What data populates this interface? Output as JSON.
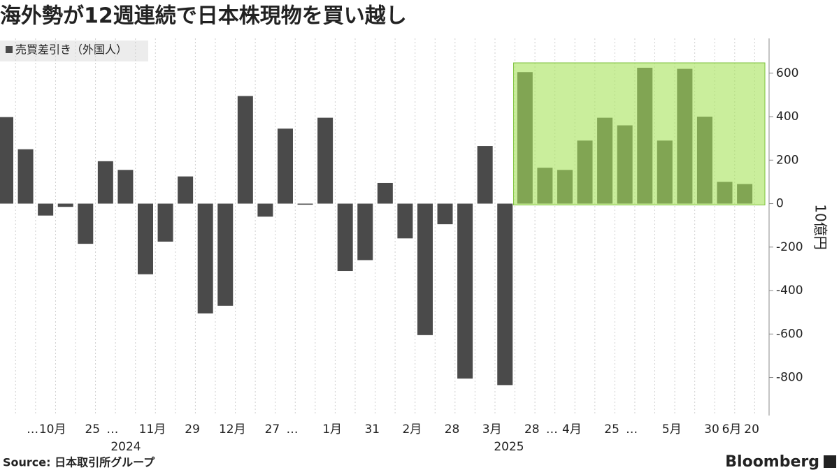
{
  "chart_data": {
    "type": "bar",
    "title": "海外勢が12週連続で日本株現物を買い越し",
    "legend": "売買差引き（外国人）",
    "y_axis_label": "10億円",
    "source": "Source: 日本取引所グループ",
    "brand": "Bloomberg",
    "year_labels": [
      "2024",
      "2025"
    ],
    "color": "#4a4a4a",
    "highlight_color": "#a6e25a",
    "categories": [
      null,
      "…",
      "10月",
      null,
      "25",
      "…",
      null,
      "11月",
      null,
      "29",
      null,
      "12月",
      null,
      "27",
      "…",
      null,
      "1月",
      null,
      "31",
      null,
      "2月",
      null,
      "28",
      null,
      "3月",
      null,
      "28",
      "…",
      "4月",
      null,
      "25",
      "…",
      null,
      "5月",
      null,
      "30",
      "6月",
      "20"
    ],
    "values": [
      398,
      250,
      -55,
      -15,
      -185,
      195,
      155,
      -325,
      -175,
      125,
      -505,
      -470,
      495,
      -60,
      345,
      -5,
      395,
      -310,
      -260,
      95,
      -160,
      -605,
      -95,
      -805,
      265,
      -835,
      605,
      165,
      155,
      290,
      395,
      360,
      625,
      290,
      620,
      400,
      100,
      90
    ],
    "ylim": [
      -975,
      760
    ],
    "yticks": [
      -800,
      -600,
      -400,
      -200,
      0,
      200,
      400,
      600
    ],
    "grid": true
  }
}
